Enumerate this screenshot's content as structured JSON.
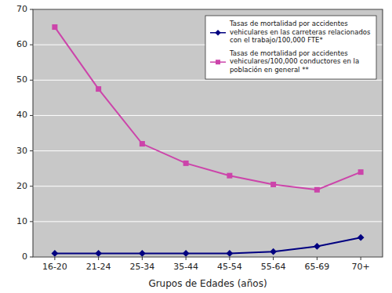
{
  "chart_data": {
    "type": "line",
    "xlabel": "Grupos de Edades (años)",
    "categories": [
      "16-20",
      "21-24",
      "25-34",
      "35-44",
      "45-54",
      "55-64",
      "65-69",
      "70+"
    ],
    "series": [
      {
        "name": "Tasas de mortalidad por accidentes\nvehiculares en las carreteras relacionados\ncon el trabajo/100,000 FTE*",
        "color": "#000080",
        "marker": "diamond",
        "values": [
          1.0,
          1.0,
          1.0,
          1.0,
          1.0,
          1.5,
          3.0,
          5.5
        ]
      },
      {
        "name": "Tasas de mortalidad por accidentes\nvehiculares/100,000 conductores en la\npoblación en general **",
        "color": "#cc44aa",
        "marker": "square",
        "values": [
          65.0,
          47.5,
          32.0,
          26.5,
          23.0,
          20.5,
          19.0,
          24.0
        ]
      }
    ],
    "ylim": [
      0,
      70
    ],
    "yticks": [
      0,
      10,
      20,
      30,
      40,
      50,
      60,
      70
    ],
    "grid": true,
    "legend": "upper-right"
  }
}
